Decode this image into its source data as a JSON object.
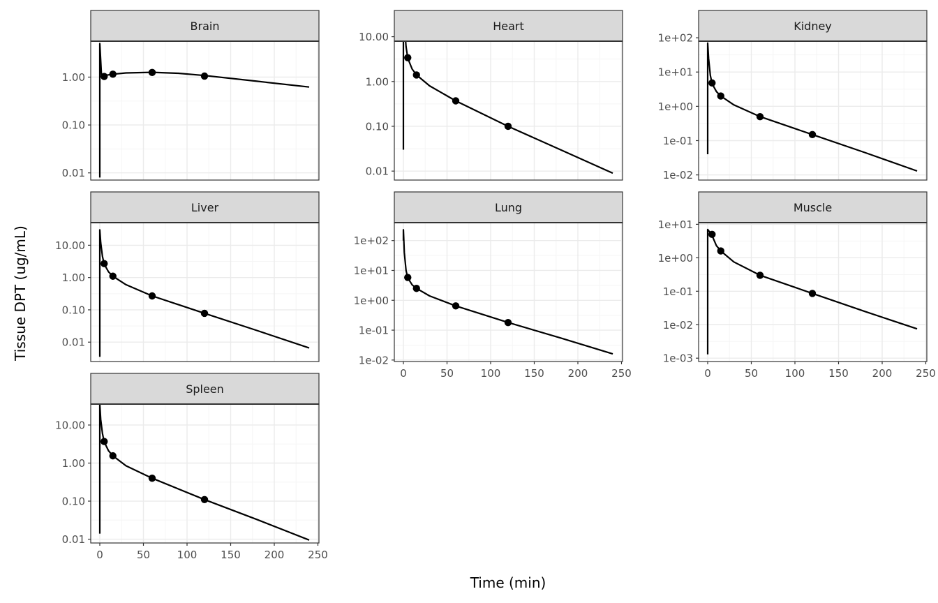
{
  "chart_data": {
    "type": "line",
    "layout": "facet-grid-3-columns",
    "xlabel": "Time (min)",
    "ylabel": "Tissue DPT (ug/mL)",
    "xticks": [
      0,
      50,
      100,
      150,
      200,
      250
    ],
    "xlim": [
      0,
      250
    ],
    "yscale": "log",
    "grid": true,
    "colors": {
      "strip_fill": "#d9d9d9",
      "panel_border": "#333333",
      "grid_major": "#ebebeb",
      "grid_minor": "#f5f5f5",
      "line": "#000000",
      "points": "#000000",
      "tick_text": "#4d4d4d"
    },
    "panels": [
      {
        "name": "Brain",
        "ylim_log10": [
          -2.15,
          0.75
        ],
        "yticks": [
          {
            "v": 0.01,
            "label": "0.01"
          },
          {
            "v": 0.1,
            "label": "0.10"
          },
          {
            "v": 1,
            "label": "1.00"
          }
        ],
        "observed": [
          [
            5,
            1.03
          ],
          [
            15,
            1.15
          ],
          [
            60,
            1.25
          ],
          [
            120,
            1.05
          ]
        ],
        "predicted": [
          [
            0,
            0.008
          ],
          [
            0,
            5.0
          ],
          [
            2,
            1.03
          ],
          [
            5,
            1.08
          ],
          [
            15,
            1.15
          ],
          [
            30,
            1.22
          ],
          [
            60,
            1.26
          ],
          [
            90,
            1.2
          ],
          [
            120,
            1.08
          ],
          [
            180,
            0.82
          ],
          [
            240,
            0.62
          ]
        ]
      },
      {
        "name": "Heart",
        "ylim_log10": [
          -2.2,
          0.9
        ],
        "yticks": [
          {
            "v": 0.01,
            "label": "0.01"
          },
          {
            "v": 0.1,
            "label": "0.10"
          },
          {
            "v": 1,
            "label": "1.00"
          },
          {
            "v": 10,
            "label": "10.00"
          }
        ],
        "observed": [
          [
            5,
            3.4
          ],
          [
            15,
            1.4
          ],
          [
            60,
            0.37
          ],
          [
            120,
            0.1
          ]
        ],
        "predicted": [
          [
            0,
            0.03
          ],
          [
            0,
            50.0
          ],
          [
            1,
            20.0
          ],
          [
            3,
            6.0
          ],
          [
            5,
            3.3
          ],
          [
            10,
            1.9
          ],
          [
            15,
            1.4
          ],
          [
            30,
            0.8
          ],
          [
            60,
            0.37
          ],
          [
            120,
            0.1
          ],
          [
            180,
            0.03
          ],
          [
            240,
            0.009
          ]
        ]
      },
      {
        "name": "Kidney",
        "ylim_log10": [
          -2.15,
          1.9
        ],
        "yticks": [
          {
            "v": 0.01,
            "label": "1e-02"
          },
          {
            "v": 0.1,
            "label": "1e-01"
          },
          {
            "v": 1,
            "label": "1e+00"
          },
          {
            "v": 10,
            "label": "1e+01"
          },
          {
            "v": 100,
            "label": "1e+02"
          }
        ],
        "observed": [
          [
            5,
            4.8
          ],
          [
            15,
            2.0
          ],
          [
            60,
            0.5
          ],
          [
            120,
            0.15
          ]
        ],
        "predicted": [
          [
            0,
            0.04
          ],
          [
            0,
            70.0
          ],
          [
            1,
            25.0
          ],
          [
            3,
            8.0
          ],
          [
            5,
            4.6
          ],
          [
            10,
            2.7
          ],
          [
            15,
            2.0
          ],
          [
            30,
            1.1
          ],
          [
            60,
            0.5
          ],
          [
            120,
            0.15
          ],
          [
            180,
            0.045
          ],
          [
            240,
            0.013
          ]
        ]
      },
      {
        "name": "Liver",
        "ylim_log10": [
          -2.6,
          1.7
        ],
        "yticks": [
          {
            "v": 0.01,
            "label": "0.01"
          },
          {
            "v": 0.1,
            "label": "0.10"
          },
          {
            "v": 1,
            "label": "1.00"
          },
          {
            "v": 10,
            "label": "10.00"
          }
        ],
        "observed": [
          [
            5,
            2.7
          ],
          [
            15,
            1.1
          ],
          [
            60,
            0.27
          ],
          [
            120,
            0.078
          ]
        ],
        "predicted": [
          [
            0,
            0.0035
          ],
          [
            0,
            30.0
          ],
          [
            1,
            12.0
          ],
          [
            3,
            4.5
          ],
          [
            5,
            2.6
          ],
          [
            10,
            1.5
          ],
          [
            15,
            1.1
          ],
          [
            30,
            0.6
          ],
          [
            60,
            0.27
          ],
          [
            120,
            0.078
          ],
          [
            180,
            0.023
          ],
          [
            240,
            0.0066
          ]
        ]
      },
      {
        "name": "Lung",
        "ylim_log10": [
          -2.05,
          2.6
        ],
        "yticks": [
          {
            "v": 0.01,
            "label": "1e-02"
          },
          {
            "v": 0.1,
            "label": "1e-01"
          },
          {
            "v": 1,
            "label": "1e+00"
          },
          {
            "v": 10,
            "label": "1e+01"
          },
          {
            "v": 100,
            "label": "1e+02"
          }
        ],
        "observed": [
          [
            5,
            5.8
          ],
          [
            15,
            2.5
          ],
          [
            60,
            0.65
          ],
          [
            120,
            0.18
          ]
        ],
        "predicted": [
          [
            0,
            100.0
          ],
          [
            0,
            230.0
          ],
          [
            1,
            40.0
          ],
          [
            3,
            10.0
          ],
          [
            5,
            5.6
          ],
          [
            10,
            3.3
          ],
          [
            15,
            2.5
          ],
          [
            30,
            1.4
          ],
          [
            60,
            0.65
          ],
          [
            120,
            0.18
          ],
          [
            180,
            0.055
          ],
          [
            240,
            0.016
          ]
        ]
      },
      {
        "name": "Muscle",
        "ylim_log10": [
          -3.1,
          1.05
        ],
        "yticks": [
          {
            "v": 0.001,
            "label": "1e-03"
          },
          {
            "v": 0.01,
            "label": "1e-02"
          },
          {
            "v": 0.1,
            "label": "1e-01"
          },
          {
            "v": 1,
            "label": "1e+00"
          },
          {
            "v": 10,
            "label": "1e+01"
          }
        ],
        "observed": [
          [
            5,
            5.0
          ],
          [
            15,
            1.6
          ],
          [
            60,
            0.3
          ],
          [
            120,
            0.086
          ]
        ],
        "predicted": [
          [
            0,
            0.0013
          ],
          [
            0,
            7.0
          ],
          [
            2,
            6.0
          ],
          [
            5,
            4.6
          ],
          [
            10,
            2.3
          ],
          [
            15,
            1.6
          ],
          [
            30,
            0.75
          ],
          [
            60,
            0.3
          ],
          [
            120,
            0.086
          ],
          [
            180,
            0.025
          ],
          [
            240,
            0.0075
          ]
        ]
      },
      {
        "name": "Spleen",
        "ylim_log10": [
          -2.1,
          1.55
        ],
        "yticks": [
          {
            "v": 0.01,
            "label": "0.01"
          },
          {
            "v": 0.1,
            "label": "0.10"
          },
          {
            "v": 1,
            "label": "1.00"
          },
          {
            "v": 10,
            "label": "10.00"
          }
        ],
        "observed": [
          [
            5,
            3.7
          ],
          [
            15,
            1.55
          ],
          [
            60,
            0.4
          ],
          [
            120,
            0.11
          ]
        ],
        "predicted": [
          [
            0,
            0.014
          ],
          [
            0,
            35.0
          ],
          [
            1,
            14.0
          ],
          [
            3,
            6.0
          ],
          [
            5,
            3.6
          ],
          [
            10,
            2.1
          ],
          [
            15,
            1.55
          ],
          [
            30,
            0.85
          ],
          [
            60,
            0.4
          ],
          [
            120,
            0.11
          ],
          [
            180,
            0.033
          ],
          [
            240,
            0.0095
          ]
        ]
      }
    ]
  }
}
